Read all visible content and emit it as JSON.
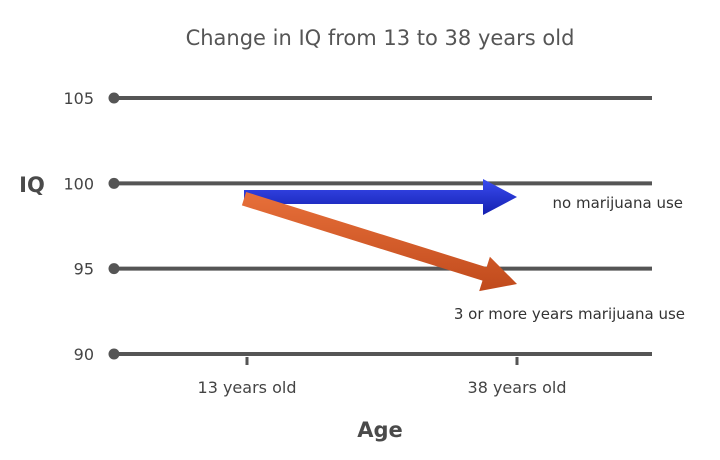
{
  "chart_data": {
    "type": "line",
    "title": "Change in IQ from 13 to 38 years old",
    "xlabel": "Age",
    "ylabel": "IQ",
    "categories": [
      "13 years old",
      "38 years old"
    ],
    "ylim": [
      90,
      105
    ],
    "yticks": [
      105,
      100,
      95,
      90
    ],
    "grid": true,
    "series": [
      {
        "name": "no marijuana use",
        "values": [
          99.2,
          99.2
        ],
        "color": "#1f2bd6",
        "style": "arrow"
      },
      {
        "name": "3 or more years marijuana use",
        "values": [
          99.1,
          94.1
        ],
        "color": "#d95a26",
        "style": "arrow"
      }
    ]
  }
}
